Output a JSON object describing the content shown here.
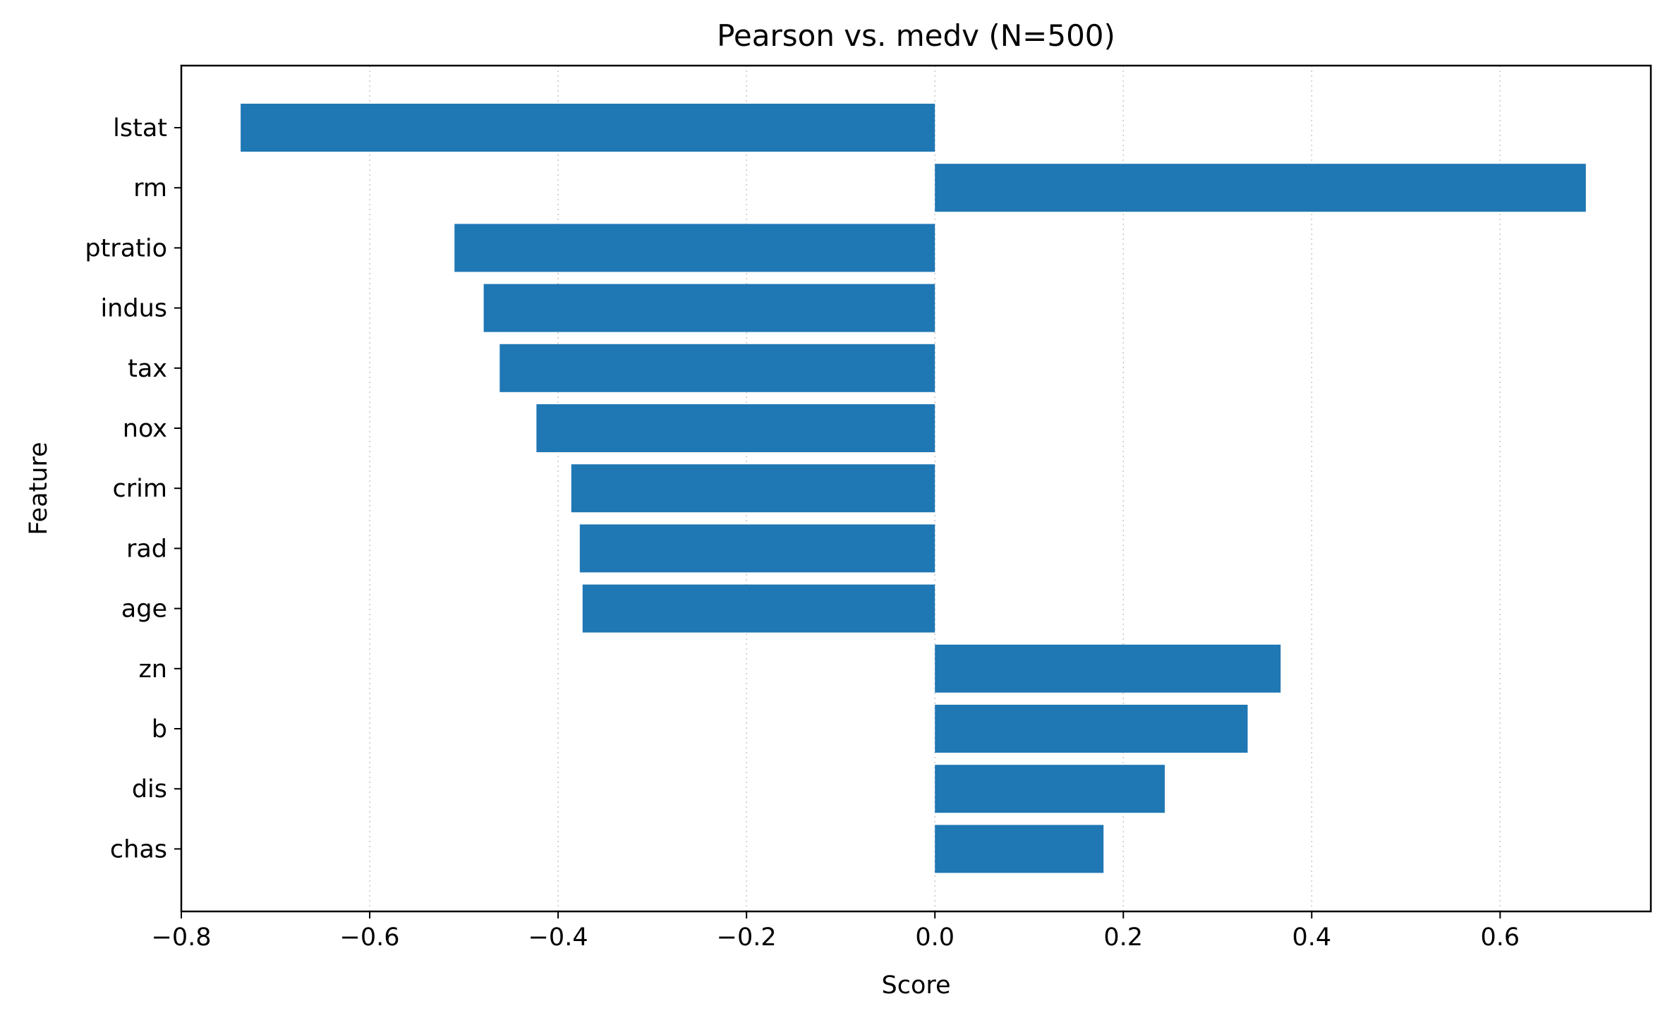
{
  "chart_data": {
    "type": "bar",
    "orientation": "horizontal",
    "title": "Pearson vs. medv  (N=500)",
    "xlabel": "Score",
    "ylabel": "Feature",
    "xlim": [
      -0.8,
      0.76
    ],
    "xticks": [
      -0.8,
      -0.6,
      -0.4,
      -0.2,
      0.0,
      0.2,
      0.4,
      0.6
    ],
    "xtick_labels": [
      "−0.8",
      "−0.6",
      "−0.4",
      "−0.2",
      "0.0",
      "0.2",
      "0.4",
      "0.6"
    ],
    "grid": "x-dotted",
    "bar_color": "#1f77b4",
    "categories": [
      "lstat",
      "rm",
      "ptratio",
      "indus",
      "tax",
      "nox",
      "crim",
      "rad",
      "age",
      "zn",
      "b",
      "dis",
      "chas"
    ],
    "values": [
      -0.737,
      0.691,
      -0.51,
      -0.479,
      -0.462,
      -0.423,
      -0.386,
      -0.377,
      -0.374,
      0.367,
      0.332,
      0.244,
      0.179
    ]
  }
}
